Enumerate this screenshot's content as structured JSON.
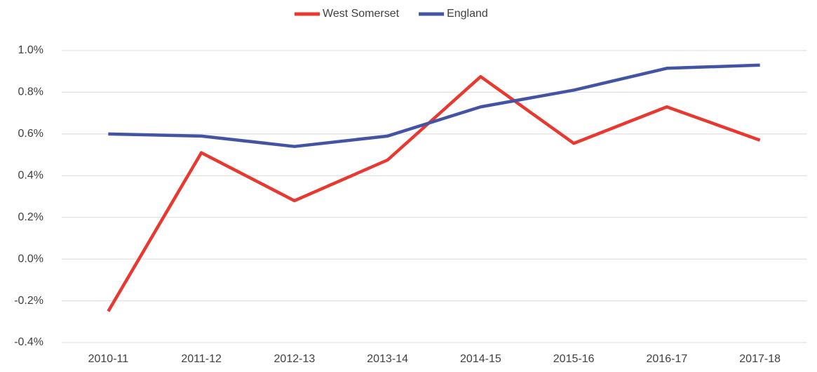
{
  "chart_data": {
    "type": "line",
    "categories": [
      "2010-11",
      "2011-12",
      "2012-13",
      "2013-14",
      "2014-15",
      "2015-16",
      "2016-17",
      "2017-18"
    ],
    "series": [
      {
        "name": "West Somerset",
        "color": "#e8382f",
        "values": [
          -0.25,
          0.51,
          0.28,
          0.475,
          0.875,
          0.555,
          0.73,
          0.57
        ]
      },
      {
        "name": "England",
        "color": "#4454a4",
        "values": [
          0.6,
          0.59,
          0.54,
          0.59,
          0.73,
          0.81,
          0.915,
          0.93
        ]
      }
    ],
    "ylim": [
      -0.4,
      1.0
    ],
    "yticks": [
      {
        "value": -0.4,
        "label": "-0.4%"
      },
      {
        "value": -0.2,
        "label": "-0.2%"
      },
      {
        "value": 0.0,
        "label": "0.0%"
      },
      {
        "value": 0.2,
        "label": "0.2%"
      },
      {
        "value": 0.4,
        "label": "0.4%"
      },
      {
        "value": 0.6,
        "label": "0.6%"
      },
      {
        "value": 0.8,
        "label": "0.8%"
      },
      {
        "value": 1.0,
        "label": "1.0%"
      }
    ],
    "grid": true,
    "legend": "top"
  }
}
